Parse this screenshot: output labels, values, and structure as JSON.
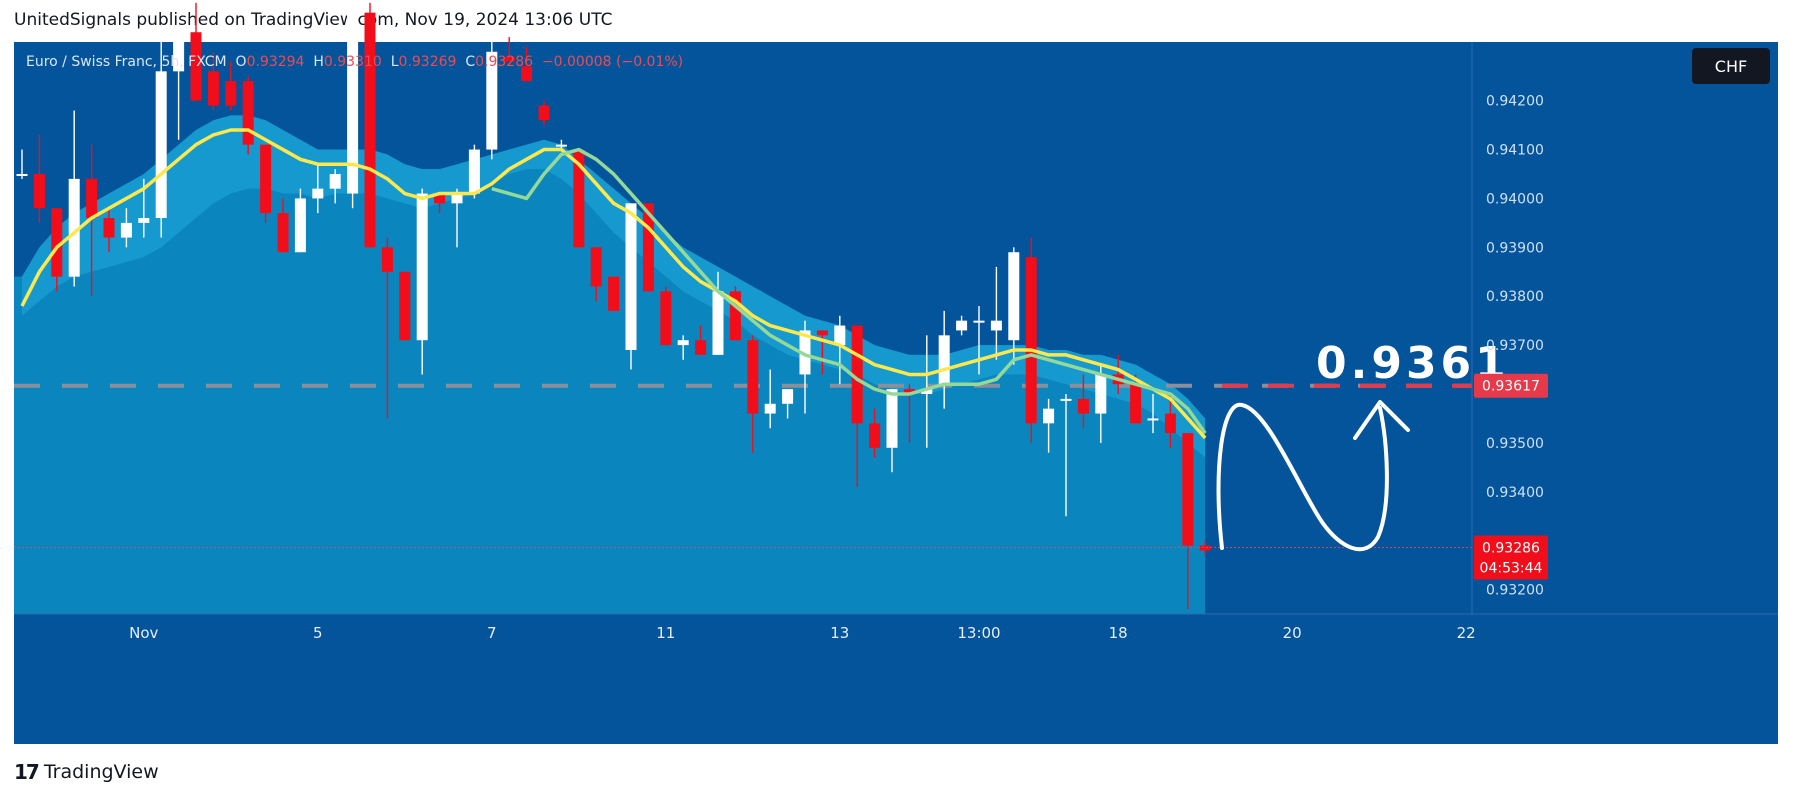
{
  "header": {
    "published": "UnitedSignals published on TradingView.com, Nov 19, 2024 13:06 UTC"
  },
  "symbol_line": {
    "name": "Euro / Swiss Franc, 5h, FXCM",
    "o_label": "O",
    "o_value": "0.93294",
    "h_label": "H",
    "h_value": "0.93310",
    "l_label": "L",
    "l_value": "0.93269",
    "c_label": "C",
    "c_value": "0.93286",
    "change": "−0.00008 (−0.01%)"
  },
  "currency_badge": "CHF",
  "annotation": {
    "target_text": "0.9361"
  },
  "price_tags": {
    "target_level": "0.93617",
    "last_price": "0.93286",
    "countdown": "04:53:44"
  },
  "footer": {
    "brand": "TradingView",
    "logo_glyph": "𝟭𝟳"
  },
  "colors": {
    "background": "#04549c",
    "area_fill": "#0a85bd",
    "up_candle": "#ffffff",
    "down_candle": "#f20d1a",
    "fast_ma": "#ffe84d",
    "slow_ma": "#95d998",
    "band": "#1aa0d4",
    "target_line": "#e63a4b"
  },
  "chart_data": {
    "type": "candlestick",
    "title": "Euro / Swiss Franc, 5h, FXCM",
    "ylim": [
      0.9315,
      0.9432
    ],
    "y_ticks": [
      "0.94200",
      "0.94100",
      "0.94000",
      "0.93900",
      "0.93800",
      "0.93700",
      "0.93500",
      "0.93400",
      "0.93200"
    ],
    "y_tick_values": [
      0.942,
      0.941,
      0.94,
      0.939,
      0.938,
      0.937,
      0.935,
      0.934,
      0.932
    ],
    "x_ticks": [
      "Nov",
      "5",
      "7",
      "11",
      "13",
      "13:00",
      "18",
      "20",
      "22"
    ],
    "x_tick_index": [
      7,
      17,
      27,
      37,
      47,
      55,
      63,
      73,
      83
    ],
    "target_level": 0.93617,
    "last_price": 0.93286,
    "ohlc": [
      [
        0.9405,
        0.941,
        0.9404,
        0.9405
      ],
      [
        0.9405,
        0.9413,
        0.9395,
        0.9398
      ],
      [
        0.9398,
        0.9398,
        0.9381,
        0.9384
      ],
      [
        0.9384,
        0.9418,
        0.9382,
        0.9404
      ],
      [
        0.9404,
        0.9411,
        0.938,
        0.9396
      ],
      [
        0.9396,
        0.9398,
        0.9389,
        0.9392
      ],
      [
        0.9392,
        0.9398,
        0.939,
        0.9395
      ],
      [
        0.9395,
        0.9404,
        0.9392,
        0.9396
      ],
      [
        0.9396,
        0.9435,
        0.9392,
        0.9426
      ],
      [
        0.9426,
        0.9435,
        0.9412,
        0.9433
      ],
      [
        0.9434,
        0.944,
        0.942,
        0.942
      ],
      [
        0.9426,
        0.943,
        0.9418,
        0.9419
      ],
      [
        0.9424,
        0.9428,
        0.9418,
        0.9419
      ],
      [
        0.9424,
        0.9425,
        0.9409,
        0.9411
      ],
      [
        0.9411,
        0.9411,
        0.9395,
        0.9397
      ],
      [
        0.9397,
        0.94,
        0.9389,
        0.9389
      ],
      [
        0.9389,
        0.9402,
        0.9389,
        0.94
      ],
      [
        0.94,
        0.9407,
        0.9397,
        0.9402
      ],
      [
        0.9402,
        0.9406,
        0.9399,
        0.9405
      ],
      [
        0.9401,
        0.944,
        0.9398,
        0.9438
      ],
      [
        0.9438,
        0.944,
        0.939,
        0.939
      ],
      [
        0.939,
        0.9392,
        0.9355,
        0.9385
      ],
      [
        0.9385,
        0.9385,
        0.9371,
        0.9371
      ],
      [
        0.9371,
        0.9402,
        0.9364,
        0.9401
      ],
      [
        0.9401,
        0.9401,
        0.9397,
        0.9399
      ],
      [
        0.9399,
        0.9402,
        0.939,
        0.9401
      ],
      [
        0.9401,
        0.9411,
        0.94,
        0.941
      ],
      [
        0.941,
        0.9434,
        0.9408,
        0.943
      ],
      [
        0.9429,
        0.9433,
        0.9428,
        0.9428
      ],
      [
        0.9427,
        0.9431,
        0.9424,
        0.9424
      ],
      [
        0.9419,
        0.942,
        0.9415,
        0.9416
      ],
      [
        0.9411,
        0.9412,
        0.941,
        0.9411
      ],
      [
        0.941,
        0.941,
        0.939,
        0.939
      ],
      [
        0.939,
        0.939,
        0.9379,
        0.9382
      ],
      [
        0.9384,
        0.9384,
        0.9377,
        0.9377
      ],
      [
        0.9369,
        0.9399,
        0.9365,
        0.9399
      ],
      [
        0.9399,
        0.9399,
        0.9381,
        0.9381
      ],
      [
        0.9381,
        0.9382,
        0.9371,
        0.937
      ],
      [
        0.937,
        0.9372,
        0.9367,
        0.9371
      ],
      [
        0.9371,
        0.9374,
        0.9368,
        0.9368
      ],
      [
        0.9368,
        0.9385,
        0.9368,
        0.9381
      ],
      [
        0.9381,
        0.9382,
        0.9371,
        0.9371
      ],
      [
        0.9371,
        0.9372,
        0.9348,
        0.9356
      ],
      [
        0.9356,
        0.9365,
        0.9353,
        0.9358
      ],
      [
        0.9358,
        0.936,
        0.9355,
        0.9361
      ],
      [
        0.9364,
        0.9375,
        0.9356,
        0.9373
      ],
      [
        0.9373,
        0.9373,
        0.9364,
        0.9372
      ],
      [
        0.937,
        0.9376,
        0.9362,
        0.9374
      ],
      [
        0.9374,
        0.9374,
        0.9341,
        0.9354
      ],
      [
        0.9354,
        0.9357,
        0.9347,
        0.9349
      ],
      [
        0.9349,
        0.9361,
        0.9344,
        0.9361
      ],
      [
        0.9361,
        0.9362,
        0.935,
        0.936
      ],
      [
        0.936,
        0.9372,
        0.9349,
        0.9361
      ],
      [
        0.9362,
        0.9377,
        0.9357,
        0.9372
      ],
      [
        0.9373,
        0.9376,
        0.9372,
        0.9375
      ],
      [
        0.9375,
        0.9378,
        0.9364,
        0.9375
      ],
      [
        0.9373,
        0.9386,
        0.9367,
        0.9375
      ],
      [
        0.9371,
        0.939,
        0.9366,
        0.9389
      ],
      [
        0.9388,
        0.9392,
        0.935,
        0.9354
      ],
      [
        0.9354,
        0.9359,
        0.9348,
        0.9357
      ],
      [
        0.9359,
        0.936,
        0.9335,
        0.9359
      ],
      [
        0.9359,
        0.9364,
        0.9353,
        0.9356
      ],
      [
        0.9356,
        0.9366,
        0.935,
        0.9364
      ],
      [
        0.9364,
        0.9368,
        0.936,
        0.9362
      ],
      [
        0.9362,
        0.9364,
        0.9354,
        0.9354
      ],
      [
        0.9355,
        0.936,
        0.9352,
        0.9355
      ],
      [
        0.9356,
        0.936,
        0.9349,
        0.9352
      ],
      [
        0.9352,
        0.9352,
        0.9316,
        0.9329
      ],
      [
        0.9329,
        0.933,
        0.9327,
        0.9328
      ]
    ],
    "ma_fast": [
      0.9378,
      0.9385,
      0.939,
      0.9393,
      0.9396,
      0.9398,
      0.94,
      0.9402,
      0.9405,
      0.9408,
      0.9411,
      0.9413,
      0.9414,
      0.9414,
      0.9412,
      0.941,
      0.9408,
      0.9407,
      0.9407,
      0.9407,
      0.9406,
      0.9404,
      0.9401,
      0.94,
      0.9401,
      0.9401,
      0.9401,
      0.9403,
      0.9406,
      0.9408,
      0.941,
      0.941,
      0.9407,
      0.9403,
      0.9399,
      0.9397,
      0.9394,
      0.939,
      0.9386,
      0.9383,
      0.9381,
      0.9379,
      0.9376,
      0.9374,
      0.9373,
      0.9372,
      0.9371,
      0.937,
      0.9368,
      0.9366,
      0.9365,
      0.9364,
      0.9364,
      0.9365,
      0.9366,
      0.9367,
      0.9368,
      0.9369,
      0.9369,
      0.9368,
      0.9368,
      0.9367,
      0.9366,
      0.9365,
      0.9363,
      0.9361,
      0.9359,
      0.9355,
      0.9351
    ],
    "ma_slow": [
      null,
      null,
      null,
      null,
      null,
      null,
      null,
      null,
      null,
      null,
      null,
      null,
      null,
      null,
      null,
      null,
      null,
      null,
      null,
      null,
      null,
      null,
      null,
      null,
      null,
      null,
      null,
      0.9402,
      0.9401,
      0.94,
      0.9405,
      0.9409,
      0.941,
      0.9408,
      0.9405,
      0.9401,
      0.9397,
      0.9393,
      0.9389,
      0.9385,
      0.9381,
      0.9378,
      0.9375,
      0.9372,
      0.937,
      0.9368,
      0.9367,
      0.9366,
      0.9363,
      0.9361,
      0.936,
      0.936,
      0.9361,
      0.9362,
      0.9362,
      0.9362,
      0.9363,
      0.9367,
      0.9368,
      0.9367,
      0.9366,
      0.9365,
      0.9364,
      0.9363,
      0.9362,
      0.9361,
      0.936,
      0.9357,
      0.9352
    ],
    "band_upper": [
      0.9384,
      0.939,
      0.9394,
      0.9397,
      0.9399,
      0.9401,
      0.9403,
      0.9405,
      0.9408,
      0.9411,
      0.9414,
      0.9416,
      0.9417,
      0.9417,
      0.9416,
      0.9414,
      0.9412,
      0.941,
      0.941,
      0.941,
      0.941,
      0.9409,
      0.9407,
      0.9406,
      0.9406,
      0.9407,
      0.9408,
      0.9409,
      0.941,
      0.9411,
      0.9412,
      0.9411,
      0.9408,
      0.9405,
      0.9402,
      0.9399,
      0.9396,
      0.9393,
      0.939,
      0.9388,
      0.9386,
      0.9384,
      0.9382,
      0.938,
      0.9378,
      0.9376,
      0.9375,
      0.9374,
      0.9372,
      0.937,
      0.9369,
      0.9368,
      0.9368,
      0.9368,
      0.9369,
      0.937,
      0.937,
      0.937,
      0.937,
      0.9369,
      0.9369,
      0.9368,
      0.9368,
      0.9367,
      0.9366,
      0.9364,
      0.9362,
      0.9359,
      0.9355
    ],
    "band_lower": [
      0.9376,
      0.9379,
      0.9382,
      0.9384,
      0.9385,
      0.9386,
      0.9387,
      0.9388,
      0.939,
      0.9393,
      0.9396,
      0.9399,
      0.9401,
      0.9402,
      0.9402,
      0.9401,
      0.9401,
      0.94,
      0.9401,
      0.9401,
      0.9401,
      0.94,
      0.9399,
      0.9398,
      0.9399,
      0.94,
      0.9401,
      0.9403,
      0.9405,
      0.9406,
      0.9406,
      0.9404,
      0.9401,
      0.9397,
      0.9393,
      0.939,
      0.9387,
      0.9384,
      0.9381,
      0.9379,
      0.9377,
      0.9375,
      0.9372,
      0.937,
      0.9368,
      0.9367,
      0.9366,
      0.9365,
      0.9364,
      0.9362,
      0.9361,
      0.936,
      0.936,
      0.9361,
      0.9362,
      0.9363,
      0.9364,
      0.9364,
      0.9364,
      0.9363,
      0.9362,
      0.9361,
      0.936,
      0.9359,
      0.9358,
      0.9356,
      0.9353,
      0.935,
      0.9347
    ]
  }
}
